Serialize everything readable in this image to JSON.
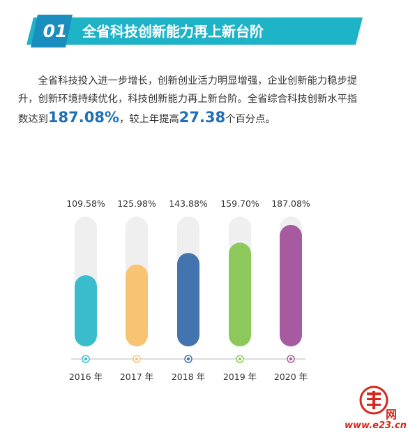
{
  "header": {
    "number": "01",
    "title": "全省科技创新能力再上新台阶"
  },
  "intro": {
    "part1": "全省科技投入进一步增长，创新创业活力明显增强，企业创新能力稳步提升，创新环境持续优化，科技创新能力再上新台阶。全省综合科技创新水平指数达到",
    "highlight1": "187.08%",
    "part2": "，较上年提高",
    "highlight2": "27.38",
    "part3": "个百分点。"
  },
  "watermark": {
    "logo_text": "舜网",
    "wang": "网",
    "site": "www.e23.cn"
  },
  "colors": {
    "banner": "#1fb3c7",
    "banner_badge": "#1a8fbf",
    "track": "#efefef",
    "axis": "#c8c8c8",
    "highlight": "#1f6fb5"
  },
  "chart_data": {
    "type": "bar",
    "categories": [
      "2016 年",
      "2017 年",
      "2018 年",
      "2019 年",
      "2020 年"
    ],
    "values": [
      109.58,
      125.98,
      143.88,
      159.7,
      187.08
    ],
    "value_labels": [
      "109.58%",
      "125.98%",
      "143.88%",
      "159.70%",
      "187.08%"
    ],
    "colors": [
      "#3bbccd",
      "#f8c472",
      "#4474ae",
      "#8cc85a",
      "#a85aa0"
    ],
    "title": "",
    "xlabel": "",
    "ylabel": "",
    "ylim": [
      0,
      200
    ],
    "grid": false,
    "legend": "none"
  }
}
